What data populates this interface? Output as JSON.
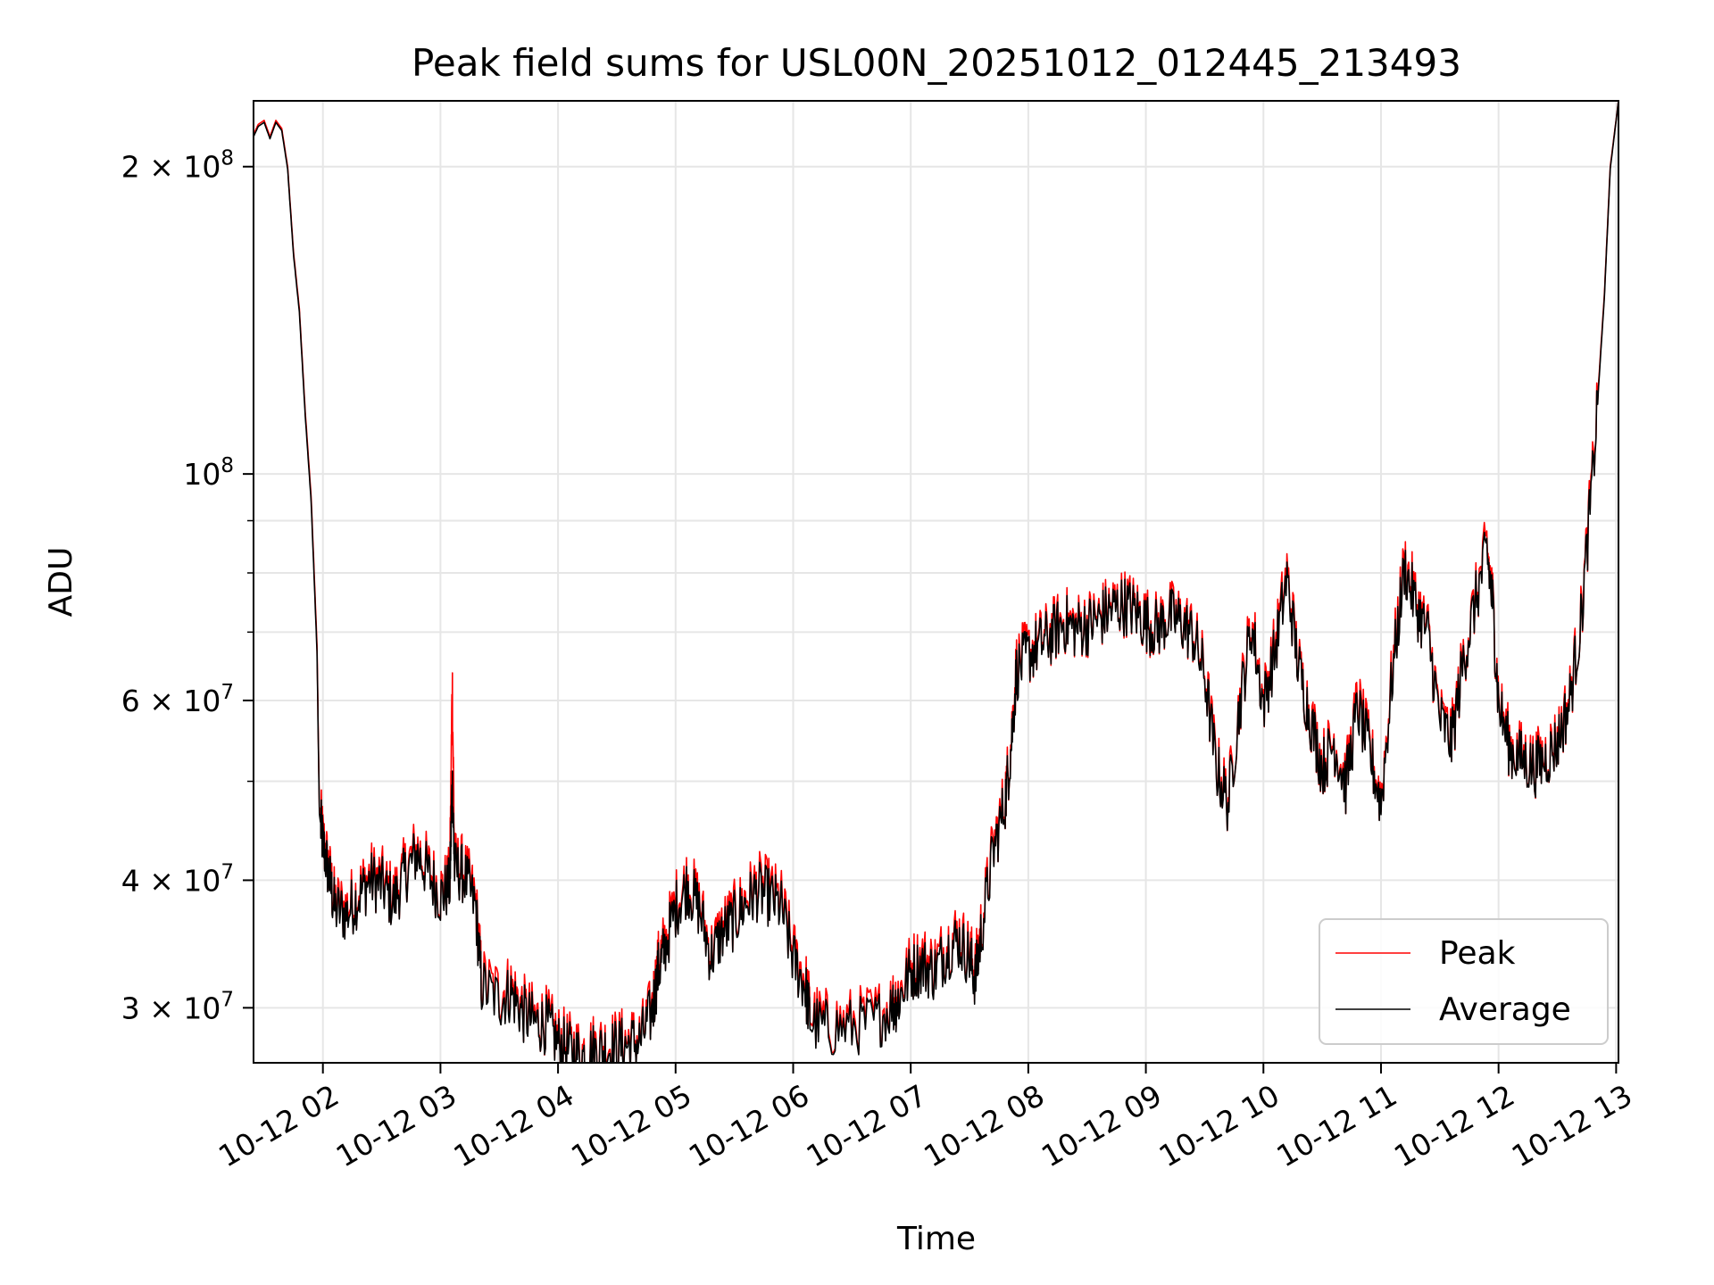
{
  "chart_data": {
    "type": "line",
    "title": "Peak field sums for USL00N_20251012_012445_213493",
    "xlabel": "Time",
    "ylabel": "ADU",
    "yscale": "log",
    "ylim": [
      26500000,
      232000000
    ],
    "xlim": [
      1.41,
      13.02
    ],
    "x_ticks": [
      {
        "value": 2,
        "label": "10-12 02"
      },
      {
        "value": 3,
        "label": "10-12 03"
      },
      {
        "value": 4,
        "label": "10-12 04"
      },
      {
        "value": 5,
        "label": "10-12 05"
      },
      {
        "value": 6,
        "label": "10-12 06"
      },
      {
        "value": 7,
        "label": "10-12 07"
      },
      {
        "value": 8,
        "label": "10-12 08"
      },
      {
        "value": 9,
        "label": "10-12 09"
      },
      {
        "value": 10,
        "label": "10-12 10"
      },
      {
        "value": 11,
        "label": "10-12 11"
      },
      {
        "value": 12,
        "label": "10-12 12"
      },
      {
        "value": 13,
        "label": "10-12 13"
      }
    ],
    "y_major_ticks": [
      {
        "value": 30000000,
        "mantissa": "3",
        "exponent": "7"
      },
      {
        "value": 40000000,
        "mantissa": "4",
        "exponent": "7"
      },
      {
        "value": 60000000,
        "mantissa": "6",
        "exponent": "7"
      },
      {
        "value": 100000000,
        "mantissa": "",
        "exponent": "8"
      },
      {
        "value": 200000000,
        "mantissa": "2",
        "exponent": "8"
      }
    ],
    "y_minor_ticks": [
      50000000,
      70000000,
      80000000,
      90000000
    ],
    "legend": {
      "position": "lower-right",
      "entries": [
        {
          "name": "Peak",
          "color": "#ff0000"
        },
        {
          "name": "Average",
          "color": "#000000"
        }
      ]
    },
    "grid": true,
    "series": [
      {
        "name": "Peak",
        "color": "#ff0000",
        "amplitude": 0.035,
        "points": [
          [
            1.41,
            215000000
          ],
          [
            1.45,
            220000000
          ],
          [
            1.5,
            222000000
          ],
          [
            1.55,
            214000000
          ],
          [
            1.6,
            222000000
          ],
          [
            1.65,
            218000000
          ],
          [
            1.7,
            200000000
          ],
          [
            1.75,
            165000000
          ],
          [
            1.8,
            145000000
          ],
          [
            1.85,
            115000000
          ],
          [
            1.9,
            95000000
          ],
          [
            1.95,
            68000000
          ],
          [
            1.97,
            47000000
          ],
          [
            2.0,
            44000000
          ],
          [
            2.05,
            41000000
          ],
          [
            2.1,
            38000000
          ],
          [
            2.2,
            37500000
          ],
          [
            2.3,
            39000000
          ],
          [
            2.4,
            40500000
          ],
          [
            2.5,
            40000000
          ],
          [
            2.6,
            38500000
          ],
          [
            2.7,
            41000000
          ],
          [
            2.8,
            43000000
          ],
          [
            2.9,
            41000000
          ],
          [
            3.0,
            39000000
          ],
          [
            3.08,
            40000000
          ],
          [
            3.1,
            63000000
          ],
          [
            3.12,
            41500000
          ],
          [
            3.2,
            41000000
          ],
          [
            3.3,
            38000000
          ],
          [
            3.35,
            32000000
          ],
          [
            3.5,
            31000000
          ],
          [
            3.6,
            31500000
          ],
          [
            3.7,
            30000000
          ],
          [
            3.8,
            29300000
          ],
          [
            3.9,
            29200000
          ],
          [
            4.0,
            28000000
          ],
          [
            4.1,
            27500000
          ],
          [
            4.2,
            27200000
          ],
          [
            4.3,
            27500000
          ],
          [
            4.4,
            27600000
          ],
          [
            4.5,
            27700000
          ],
          [
            4.6,
            27900000
          ],
          [
            4.7,
            28000000
          ],
          [
            4.8,
            30000000
          ],
          [
            4.85,
            33000000
          ],
          [
            4.9,
            34500000
          ],
          [
            5.0,
            38000000
          ],
          [
            5.1,
            40000000
          ],
          [
            5.2,
            38000000
          ],
          [
            5.3,
            34000000
          ],
          [
            5.4,
            36000000
          ],
          [
            5.5,
            37000000
          ],
          [
            5.6,
            38500000
          ],
          [
            5.7,
            39500000
          ],
          [
            5.8,
            39000000
          ],
          [
            5.9,
            38000000
          ],
          [
            6.0,
            34000000
          ],
          [
            6.1,
            32000000
          ],
          [
            6.15,
            29500000
          ],
          [
            6.3,
            29000000
          ],
          [
            6.5,
            29100000
          ],
          [
            6.7,
            29500000
          ],
          [
            6.85,
            30500000
          ],
          [
            6.9,
            31000000
          ],
          [
            7.0,
            33000000
          ],
          [
            7.1,
            33500000
          ],
          [
            7.2,
            33000000
          ],
          [
            7.3,
            34500000
          ],
          [
            7.4,
            35500000
          ],
          [
            7.5,
            34000000
          ],
          [
            7.55,
            32500000
          ],
          [
            7.6,
            36000000
          ],
          [
            7.7,
            43000000
          ],
          [
            7.8,
            48000000
          ],
          [
            7.85,
            54000000
          ],
          [
            7.9,
            65000000
          ],
          [
            8.0,
            67000000
          ],
          [
            8.1,
            68500000
          ],
          [
            8.2,
            70000000
          ],
          [
            8.3,
            72000000
          ],
          [
            8.4,
            71000000
          ],
          [
            8.5,
            71500000
          ],
          [
            8.6,
            72500000
          ],
          [
            8.7,
            74000000
          ],
          [
            8.8,
            75000000
          ],
          [
            8.9,
            74000000
          ],
          [
            9.0,
            72000000
          ],
          [
            9.1,
            71000000
          ],
          [
            9.2,
            73000000
          ],
          [
            9.3,
            72000000
          ],
          [
            9.4,
            70000000
          ],
          [
            9.5,
            64000000
          ],
          [
            9.6,
            52000000
          ],
          [
            9.7,
            48000000
          ],
          [
            9.8,
            60000000
          ],
          [
            9.9,
            72000000
          ],
          [
            10.0,
            60000000
          ],
          [
            10.1,
            68000000
          ],
          [
            10.2,
            80000000
          ],
          [
            10.3,
            65000000
          ],
          [
            10.4,
            58000000
          ],
          [
            10.5,
            52000000
          ],
          [
            10.6,
            55000000
          ],
          [
            10.7,
            50000000
          ],
          [
            10.8,
            60000000
          ],
          [
            10.9,
            54000000
          ],
          [
            11.0,
            48000000
          ],
          [
            11.1,
            65000000
          ],
          [
            11.2,
            82000000
          ],
          [
            11.3,
            75000000
          ],
          [
            11.4,
            70000000
          ],
          [
            11.5,
            58000000
          ],
          [
            11.6,
            55000000
          ],
          [
            11.7,
            66000000
          ],
          [
            11.8,
            75000000
          ],
          [
            11.9,
            85000000
          ],
          [
            11.95,
            75000000
          ],
          [
            12.0,
            60000000
          ],
          [
            12.1,
            54000000
          ],
          [
            12.2,
            53000000
          ],
          [
            12.3,
            52000000
          ],
          [
            12.4,
            53000000
          ],
          [
            12.5,
            55000000
          ],
          [
            12.6,
            60000000
          ],
          [
            12.7,
            72000000
          ],
          [
            12.8,
            100000000
          ],
          [
            12.9,
            150000000
          ],
          [
            12.95,
            200000000
          ],
          [
            13.02,
            232000000
          ]
        ]
      },
      {
        "name": "Average",
        "color": "#000000",
        "amplitude": 0.03,
        "points": [
          [
            1.41,
            214000000
          ],
          [
            1.45,
            219000000
          ],
          [
            1.5,
            221000000
          ],
          [
            1.55,
            213000000
          ],
          [
            1.6,
            221000000
          ],
          [
            1.65,
            217000000
          ],
          [
            1.7,
            199000000
          ],
          [
            1.75,
            164000000
          ],
          [
            1.8,
            144000000
          ],
          [
            1.85,
            114000000
          ],
          [
            1.9,
            94000000
          ],
          [
            1.95,
            67000000
          ],
          [
            1.97,
            46500000
          ],
          [
            2.0,
            43500000
          ],
          [
            2.05,
            40500000
          ],
          [
            2.1,
            37500000
          ],
          [
            2.2,
            37000000
          ],
          [
            2.3,
            38500000
          ],
          [
            2.4,
            40000000
          ],
          [
            2.5,
            39500000
          ],
          [
            2.6,
            38000000
          ],
          [
            2.7,
            40500000
          ],
          [
            2.8,
            42500000
          ],
          [
            2.9,
            40500000
          ],
          [
            3.0,
            38500000
          ],
          [
            3.08,
            39500000
          ],
          [
            3.1,
            50000000
          ],
          [
            3.12,
            41000000
          ],
          [
            3.2,
            40500000
          ],
          [
            3.3,
            37500000
          ],
          [
            3.35,
            31500000
          ],
          [
            3.5,
            30500000
          ],
          [
            3.6,
            31000000
          ],
          [
            3.7,
            29600000
          ],
          [
            3.8,
            29000000
          ],
          [
            3.9,
            28900000
          ],
          [
            4.0,
            27700000
          ],
          [
            4.1,
            27200000
          ],
          [
            4.2,
            26900000
          ],
          [
            4.3,
            27200000
          ],
          [
            4.4,
            27300000
          ],
          [
            4.5,
            27400000
          ],
          [
            4.6,
            27600000
          ],
          [
            4.7,
            27800000
          ],
          [
            4.8,
            29700000
          ],
          [
            4.85,
            32500000
          ],
          [
            4.9,
            34000000
          ],
          [
            5.0,
            37500000
          ],
          [
            5.1,
            39500000
          ],
          [
            5.2,
            37500000
          ],
          [
            5.3,
            33600000
          ],
          [
            5.4,
            35500000
          ],
          [
            5.5,
            36500000
          ],
          [
            5.6,
            38000000
          ],
          [
            5.7,
            39000000
          ],
          [
            5.8,
            38500000
          ],
          [
            5.9,
            37500000
          ],
          [
            6.0,
            33500000
          ],
          [
            6.1,
            31500000
          ],
          [
            6.15,
            29000000
          ],
          [
            6.3,
            28600000
          ],
          [
            6.5,
            28700000
          ],
          [
            6.7,
            29100000
          ],
          [
            6.85,
            30100000
          ],
          [
            6.9,
            30600000
          ],
          [
            7.0,
            32500000
          ],
          [
            7.1,
            33000000
          ],
          [
            7.2,
            32500000
          ],
          [
            7.3,
            34000000
          ],
          [
            7.4,
            35000000
          ],
          [
            7.5,
            33500000
          ],
          [
            7.55,
            32000000
          ],
          [
            7.6,
            35500000
          ],
          [
            7.7,
            42500000
          ],
          [
            7.8,
            47500000
          ],
          [
            7.85,
            53500000
          ],
          [
            7.9,
            64000000
          ],
          [
            8.0,
            66500000
          ],
          [
            8.1,
            68000000
          ],
          [
            8.2,
            69500000
          ],
          [
            8.3,
            71500000
          ],
          [
            8.4,
            70500000
          ],
          [
            8.5,
            71000000
          ],
          [
            8.6,
            72000000
          ],
          [
            8.7,
            73500000
          ],
          [
            8.8,
            74500000
          ],
          [
            8.9,
            73500000
          ],
          [
            9.0,
            71500000
          ],
          [
            9.1,
            70500000
          ],
          [
            9.2,
            72500000
          ],
          [
            9.3,
            71500000
          ],
          [
            9.4,
            69500000
          ],
          [
            9.5,
            63500000
          ],
          [
            9.6,
            51500000
          ],
          [
            9.7,
            47500000
          ],
          [
            9.8,
            59500000
          ],
          [
            9.9,
            71000000
          ],
          [
            10.0,
            59500000
          ],
          [
            10.1,
            67000000
          ],
          [
            10.2,
            79000000
          ],
          [
            10.3,
            64500000
          ],
          [
            10.4,
            57500000
          ],
          [
            10.5,
            51500000
          ],
          [
            10.6,
            54500000
          ],
          [
            10.7,
            49500000
          ],
          [
            10.8,
            59000000
          ],
          [
            10.9,
            53500000
          ],
          [
            11.0,
            47500000
          ],
          [
            11.1,
            64000000
          ],
          [
            11.2,
            81000000
          ],
          [
            11.3,
            74000000
          ],
          [
            11.4,
            69500000
          ],
          [
            11.5,
            57500000
          ],
          [
            11.6,
            54500000
          ],
          [
            11.7,
            65500000
          ],
          [
            11.8,
            74500000
          ],
          [
            11.9,
            84000000
          ],
          [
            11.95,
            74500000
          ],
          [
            12.0,
            59500000
          ],
          [
            12.1,
            53500000
          ],
          [
            12.2,
            52500000
          ],
          [
            12.3,
            51500000
          ],
          [
            12.4,
            52500000
          ],
          [
            12.5,
            54500000
          ],
          [
            12.6,
            59500000
          ],
          [
            12.7,
            71500000
          ],
          [
            12.8,
            99000000
          ],
          [
            12.9,
            149000000
          ],
          [
            12.95,
            199000000
          ],
          [
            13.02,
            232000000
          ]
        ]
      }
    ]
  }
}
